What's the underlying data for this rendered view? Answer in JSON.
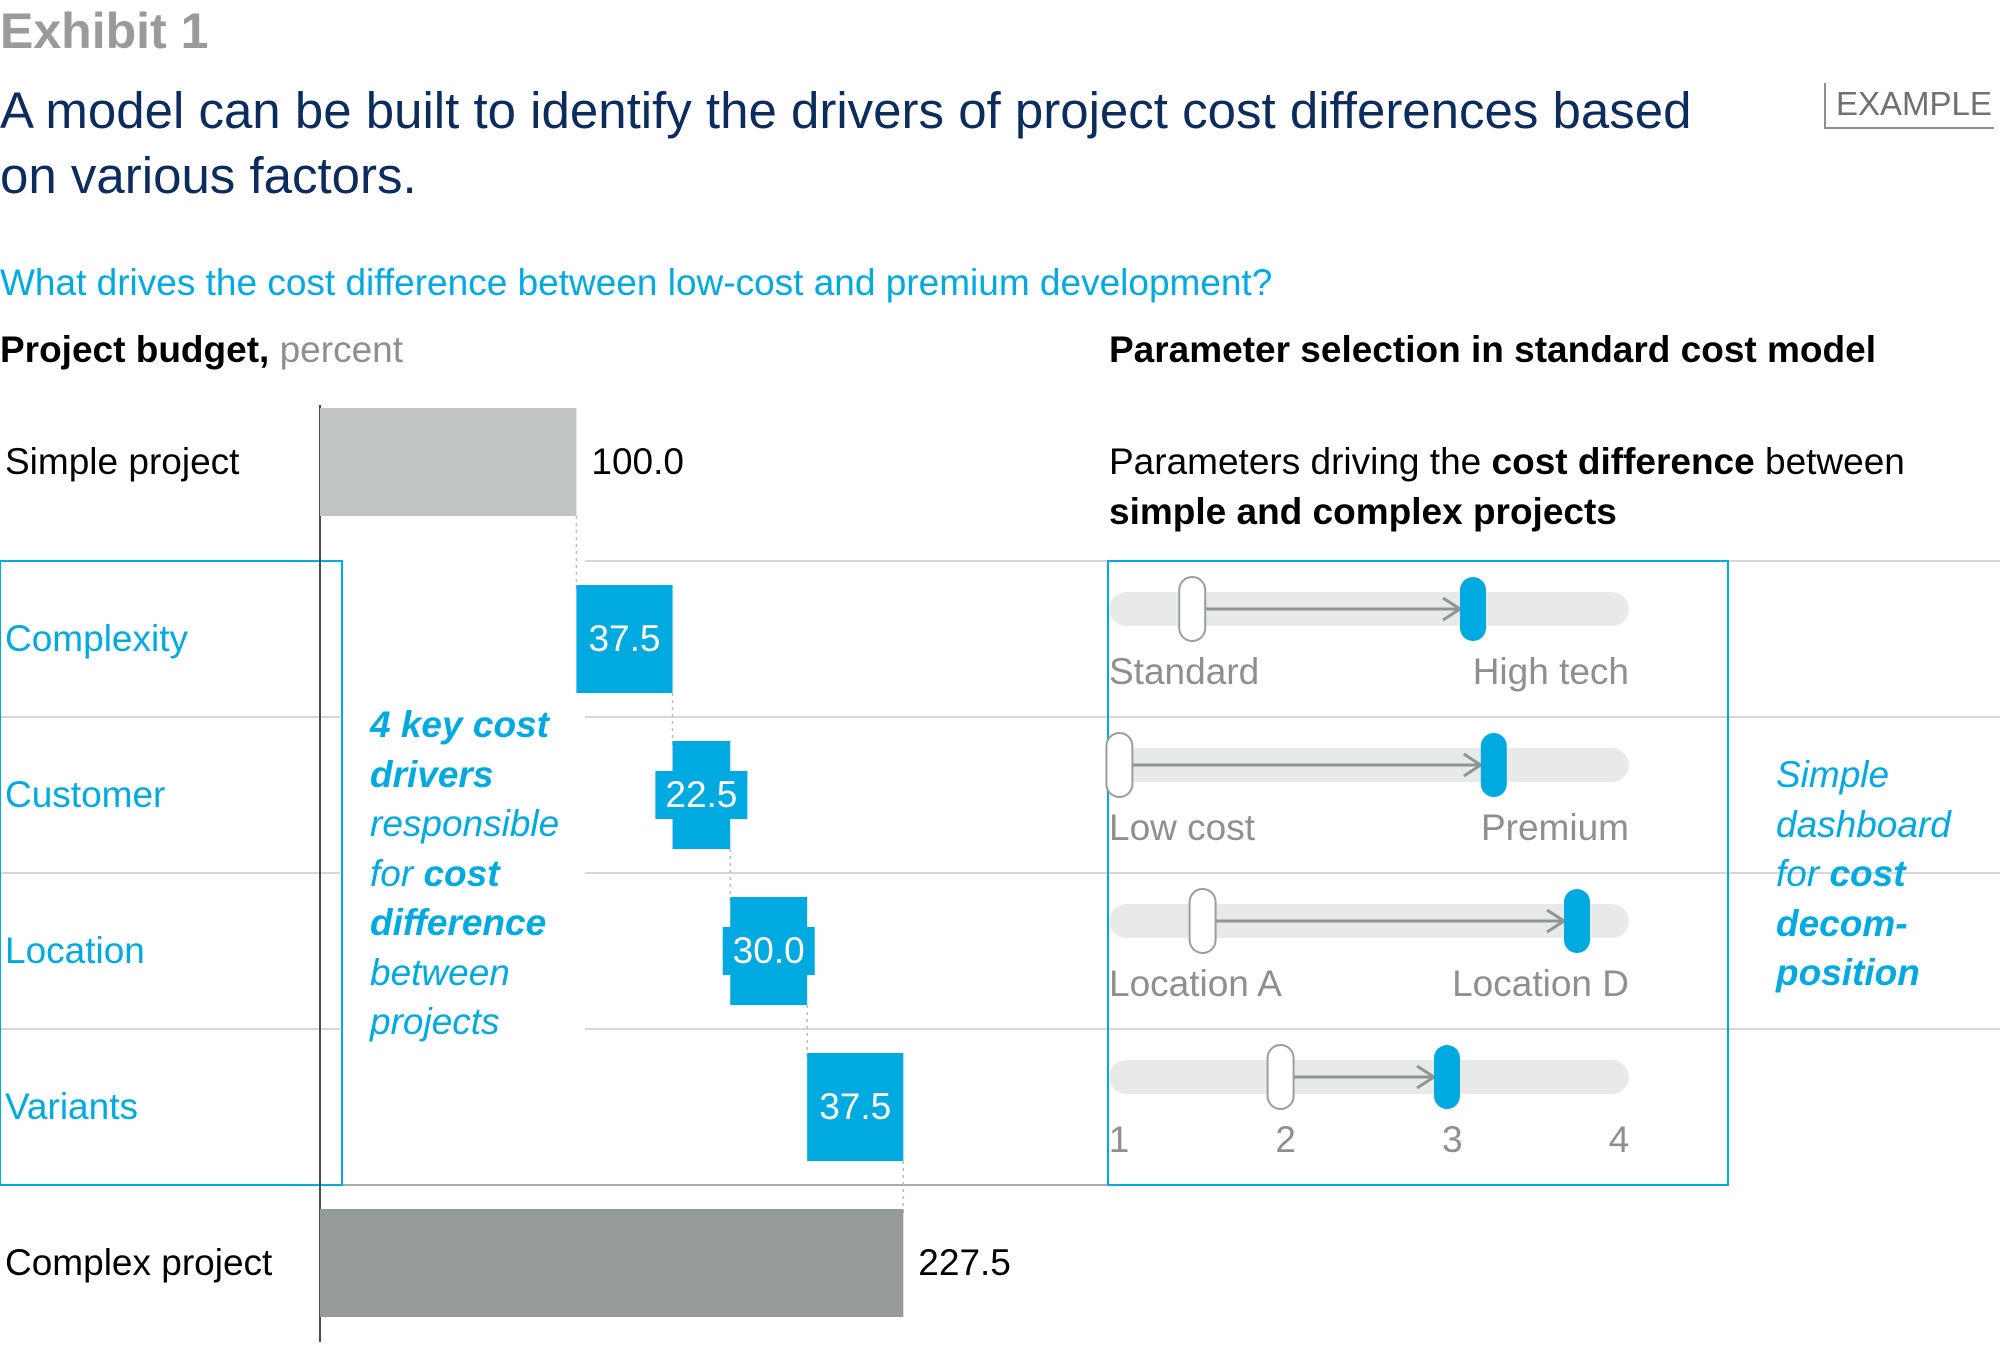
{
  "exhibit_label": "Exhibit 1",
  "title": "A model can be built to identify the drivers of project cost differences based on various factors.",
  "badge": "EXAMPLE",
  "question": "What drives the cost difference between low-cost and premium development?",
  "left_panel": {
    "title_bold": "Project budget,",
    "title_unit": "percent",
    "drivers_note": {
      "line1": "4 key cost",
      "line2": "drivers",
      "line3": "responsible",
      "line4_pre": "for",
      "line4_bold": "cost",
      "line5": "difference",
      "line6": "between",
      "line7": "projects"
    }
  },
  "right_panel": {
    "title": "Parameter selection in standard cost model",
    "subtitle_pre": "Parameters driving the",
    "subtitle_bold1": "cost difference",
    "subtitle_mid": "between",
    "subtitle_bold2": "simple and complex projects",
    "dashboard_note": {
      "line1": "Simple",
      "line2": "dashboard",
      "line3_pre": "for",
      "line3_bold": "cost",
      "line4": "decom-",
      "line5": "position"
    }
  },
  "colors": {
    "accent": "#00a9e0",
    "simple_bar": "#c0c4c2",
    "complex_bar": "#959c98",
    "track": "#e8eaea",
    "arrow": "#8f9592",
    "title": "#0c2c5e"
  },
  "chart_data": {
    "type": "waterfall",
    "unit": "percent",
    "categories": [
      "Simple project",
      "Complexity",
      "Customer",
      "Location",
      "Variants",
      "Complex project"
    ],
    "values": [
      100.0,
      37.5,
      22.5,
      30.0,
      37.5,
      227.5
    ],
    "value_labels": [
      "100.0",
      "37.5",
      "22.5",
      "30.0",
      "37.5",
      "227.5"
    ],
    "kinds": [
      "total",
      "delta",
      "delta",
      "delta",
      "delta",
      "total"
    ]
  },
  "sliders": [
    {
      "name": "complexity",
      "labels": [
        "Standard",
        "High tech"
      ],
      "from": 0.16,
      "to": 0.7
    },
    {
      "name": "customer",
      "labels": [
        "Low cost",
        "Premium"
      ],
      "from": 0.02,
      "to": 0.74
    },
    {
      "name": "location",
      "labels": [
        "Location A",
        "Location D"
      ],
      "from": 0.18,
      "to": 0.9
    },
    {
      "name": "variants",
      "labels": [
        "1",
        "2",
        "3",
        "4"
      ],
      "from": 0.33,
      "to": 0.65
    }
  ]
}
